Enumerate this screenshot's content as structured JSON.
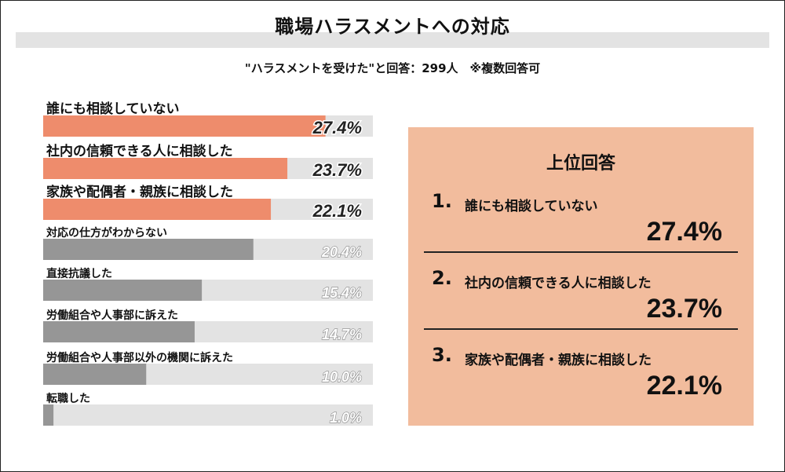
{
  "title": "職場ハラスメントへの対応",
  "subtitle": "\"ハラスメントを受けた\"と回答：299人　※複数回答可",
  "chart_data": {
    "type": "bar",
    "orientation": "horizontal",
    "categories": [
      "誰にも相談していない",
      "社内の信頼できる人に相談した",
      "家族や配偶者・親族に相談した",
      "対応の仕方がわからない",
      "直接抗議した",
      "労働組合や人事部に訴えた",
      "労働組合や人事部以外の機関に訴えた",
      "転職した"
    ],
    "values": [
      27.4,
      23.7,
      22.1,
      20.4,
      15.4,
      14.7,
      10.0,
      1.0
    ],
    "value_labels": [
      "27.4%",
      "23.7%",
      "22.1%",
      "20.4%",
      "15.4%",
      "14.7%",
      "10.0%",
      "1.0%"
    ],
    "xlim": [
      0,
      32
    ],
    "highlight_count": 3,
    "grid": false
  },
  "top_answers": {
    "heading": "上位回答",
    "items": [
      {
        "rank": "1.",
        "label": "誰にも相談していない",
        "value": "27.4%"
      },
      {
        "rank": "2.",
        "label": "社内の信頼できる人に相談した",
        "value": "23.7%"
      },
      {
        "rank": "3.",
        "label": "家族や配偶者・親族に相談した",
        "value": "22.1%"
      }
    ]
  },
  "colors": {
    "highlight_bar": "#ee8c6c",
    "normal_bar": "#969696",
    "bar_track": "#e3e3e3",
    "top_box": "#f2bc9d"
  }
}
